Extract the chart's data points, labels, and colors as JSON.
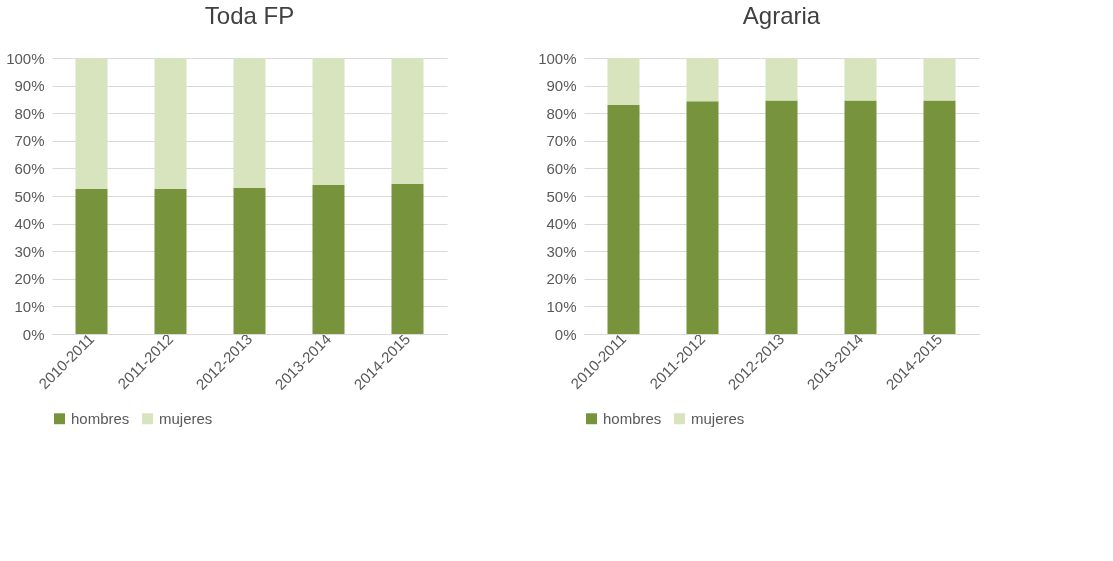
{
  "chart_data": [
    {
      "type": "bar",
      "title": "Toda FP",
      "stacked": true,
      "categories": [
        "2010-2011",
        "2011-2012",
        "2012-2013",
        "2013-2014",
        "2014-2015"
      ],
      "series": [
        {
          "name": "hombres",
          "color": "#77933c",
          "values": [
            52.5,
            52.5,
            52.9,
            54.0,
            54.4
          ]
        },
        {
          "name": "mujeres",
          "color": "#d7e4bd",
          "values": [
            47.5,
            47.5,
            47.1,
            46.0,
            45.6
          ]
        }
      ],
      "ylim": [
        0,
        100
      ],
      "yticks": [
        {
          "value": 0,
          "label": "0%"
        },
        {
          "value": 10,
          "label": "10%"
        },
        {
          "value": 20,
          "label": "20%"
        },
        {
          "value": 30,
          "label": "30%"
        },
        {
          "value": 40,
          "label": "40%"
        },
        {
          "value": 50,
          "label": "50%"
        },
        {
          "value": 60,
          "label": "60%"
        },
        {
          "value": 70,
          "label": "70%"
        },
        {
          "value": 80,
          "label": "80%"
        },
        {
          "value": 90,
          "label": "90%"
        },
        {
          "value": 100,
          "label": "100%"
        }
      ],
      "grid": "y",
      "legend": "bottom"
    },
    {
      "type": "bar",
      "title": "Agraria",
      "stacked": true,
      "categories": [
        "2010-2011",
        "2011-2012",
        "2012-2013",
        "2013-2014",
        "2014-2015"
      ],
      "series": [
        {
          "name": "hombres",
          "color": "#77933c",
          "values": [
            83.0,
            84.3,
            84.6,
            84.6,
            84.6
          ]
        },
        {
          "name": "mujeres",
          "color": "#d7e4bd",
          "values": [
            17.0,
            15.7,
            15.4,
            15.4,
            15.4
          ]
        }
      ],
      "ylim": [
        0,
        100
      ],
      "yticks": [
        {
          "value": 0,
          "label": "0%"
        },
        {
          "value": 10,
          "label": "10%"
        },
        {
          "value": 20,
          "label": "20%"
        },
        {
          "value": 30,
          "label": "30%"
        },
        {
          "value": 40,
          "label": "40%"
        },
        {
          "value": 50,
          "label": "50%"
        },
        {
          "value": 60,
          "label": "60%"
        },
        {
          "value": 70,
          "label": "70%"
        },
        {
          "value": 80,
          "label": "80%"
        },
        {
          "value": 90,
          "label": "90%"
        },
        {
          "value": 100,
          "label": "100%"
        }
      ],
      "grid": "y",
      "legend": "bottom"
    }
  ]
}
